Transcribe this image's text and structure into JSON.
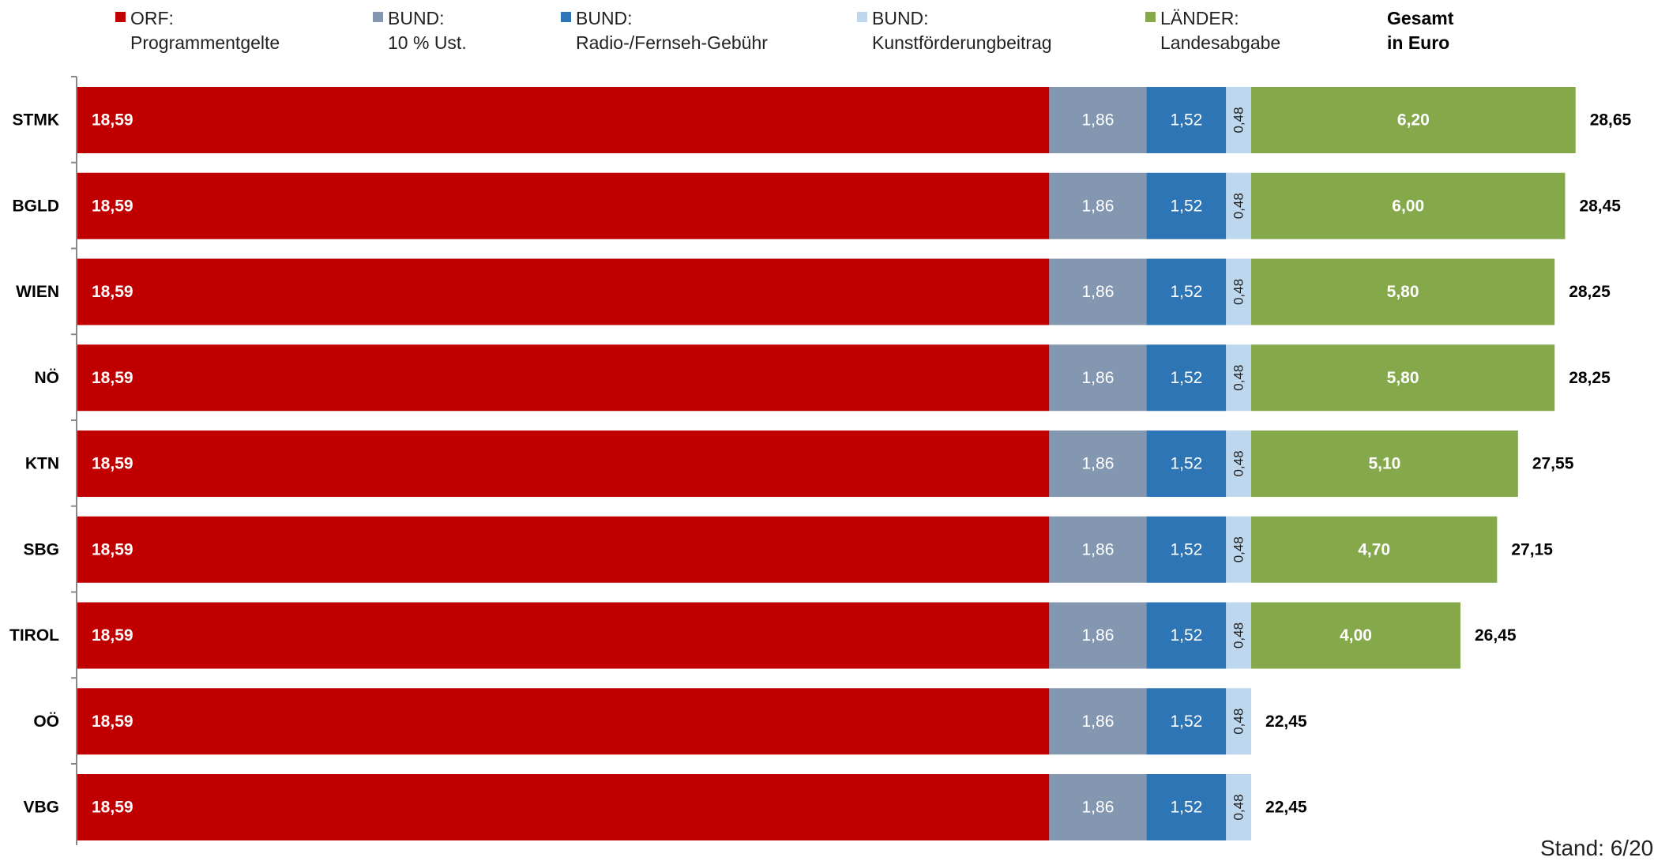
{
  "chart_data": {
    "type": "bar",
    "orientation": "horizontal",
    "stacked": true,
    "categories": [
      "STMK",
      "BGLD",
      "WIEN",
      "NÖ",
      "KTN",
      "SBG",
      "TIROL",
      "OÖ",
      "VBG"
    ],
    "series": [
      {
        "name": "ORF:",
        "name_line2": "Programmentgelte",
        "color": "#c00000",
        "values": [
          18.59,
          18.59,
          18.59,
          18.59,
          18.59,
          18.59,
          18.59,
          18.59,
          18.59
        ],
        "labels": [
          "18,59",
          "18,59",
          "18,59",
          "18,59",
          "18,59",
          "18,59",
          "18,59",
          "18,59",
          "18,59"
        ]
      },
      {
        "name": "BUND:",
        "name_line2": "10 % Ust.",
        "color": "#8497b0",
        "values": [
          1.86,
          1.86,
          1.86,
          1.86,
          1.86,
          1.86,
          1.86,
          1.86,
          1.86
        ],
        "labels": [
          "1,86",
          "1,86",
          "1,86",
          "1,86",
          "1,86",
          "1,86",
          "1,86",
          "1,86",
          "1,86"
        ]
      },
      {
        "name": "BUND:",
        "name_line2": "Radio-/Fernseh-Gebühr",
        "color": "#2e75b6",
        "values": [
          1.52,
          1.52,
          1.52,
          1.52,
          1.52,
          1.52,
          1.52,
          1.52,
          1.52
        ],
        "labels": [
          "1,52",
          "1,52",
          "1,52",
          "1,52",
          "1,52",
          "1,52",
          "1,52",
          "1,52",
          "1,52"
        ]
      },
      {
        "name": "BUND:",
        "name_line2": "Kunstförderungbeitrag",
        "color": "#bdd7ee",
        "values": [
          0.48,
          0.48,
          0.48,
          0.48,
          0.48,
          0.48,
          0.48,
          0.48,
          0.48
        ],
        "labels": [
          "0,48",
          "0,48",
          "0,48",
          "0,48",
          "0,48",
          "0,48",
          "0,48",
          "0,48",
          "0,48"
        ]
      },
      {
        "name": "LÄNDER:",
        "name_line2": "Landesabgabe",
        "color": "#84a84a",
        "values": [
          6.2,
          6.0,
          5.8,
          5.8,
          5.1,
          4.7,
          4.0,
          0,
          0
        ],
        "labels": [
          "6,20",
          "6,00",
          "5,80",
          "5,80",
          "5,10",
          "4,70",
          "4,00",
          "",
          ""
        ]
      }
    ],
    "totals": [
      "28,65",
      "28,45",
      "28,25",
      "28,25",
      "27,55",
      "27,15",
      "26,45",
      "22,45",
      "22,45"
    ],
    "total_header": [
      "Gesamt",
      "in Euro"
    ],
    "footnote": "Stand: 6/20",
    "xlim": [
      0,
      28.65
    ],
    "legend_position": "top"
  }
}
